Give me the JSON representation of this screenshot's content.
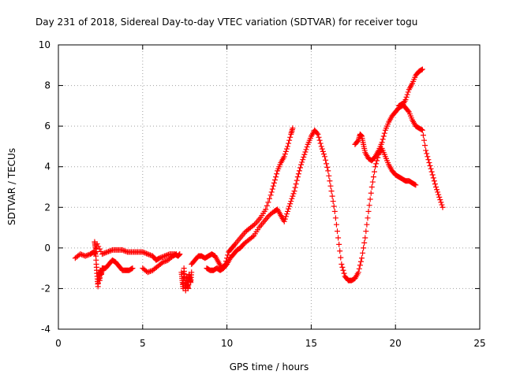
{
  "chart_data": {
    "type": "scatter",
    "title": "Day 231 of 2018, Sidereal Day-to-day VTEC variation (SDTVAR) for receiver togu",
    "xlabel": "GPS time / hours",
    "ylabel": "SDTVAR / TECUs",
    "xlim": [
      0,
      25
    ],
    "ylim": [
      -4,
      10
    ],
    "x_ticks": [
      0,
      5,
      10,
      15,
      20,
      25
    ],
    "y_ticks": [
      -4,
      -2,
      0,
      2,
      4,
      6,
      8,
      10
    ],
    "x_tick_labels": [
      "0",
      "5",
      "10",
      "15",
      "20",
      "25"
    ],
    "y_tick_labels": [
      "-4",
      "-2",
      "0",
      "2",
      "4",
      "6",
      "8",
      "10"
    ],
    "grid": true,
    "marker": "+",
    "color": "#ff0000",
    "series": [
      {
        "name": "seg-a-upper",
        "x": [
          1.0,
          1.3,
          1.6,
          1.9,
          2.1,
          2.2,
          2.3,
          2.6,
          2.9,
          3.2,
          3.5,
          3.8,
          4.1,
          4.4,
          4.7,
          5.0,
          5.3,
          5.6,
          5.8,
          6.0,
          6.3,
          6.6,
          6.9,
          7.1,
          7.2
        ],
        "y": [
          -0.5,
          -0.3,
          -0.4,
          -0.3,
          -0.2,
          -0.3,
          0.2,
          -0.3,
          -0.2,
          -0.1,
          -0.1,
          -0.1,
          -0.2,
          -0.2,
          -0.2,
          -0.2,
          -0.3,
          -0.4,
          -0.6,
          -0.5,
          -0.4,
          -0.3,
          -0.3,
          -0.4,
          -0.3
        ]
      },
      {
        "name": "seg-a-spikes",
        "x": [
          2.15,
          2.2,
          2.25,
          2.3,
          2.35,
          2.4,
          2.45,
          2.5,
          2.55,
          2.6
        ],
        "y": [
          0.3,
          0.0,
          -0.8,
          -1.4,
          -1.9,
          -1.2,
          -1.6,
          -1.1,
          -1.3,
          -1.0
        ]
      },
      {
        "name": "seg-a-lower",
        "x": [
          2.6,
          2.8,
          3.0,
          3.2,
          3.4,
          3.6,
          3.8,
          4.0,
          4.2,
          4.4
        ],
        "y": [
          -1.0,
          -1.0,
          -0.8,
          -0.6,
          -0.7,
          -0.9,
          -1.1,
          -1.1,
          -1.1,
          -1.0
        ]
      },
      {
        "name": "seg-b",
        "x": [
          5.0,
          5.3,
          5.6,
          5.9,
          6.2,
          6.5,
          6.8,
          7.0
        ],
        "y": [
          -1.0,
          -1.2,
          -1.1,
          -0.9,
          -0.7,
          -0.6,
          -0.4,
          -0.3
        ]
      },
      {
        "name": "seg-c-drop",
        "x": [
          7.3,
          7.35,
          7.4,
          7.45,
          7.5,
          7.55,
          7.6,
          7.65,
          7.7,
          7.75,
          7.8,
          7.85,
          7.9
        ],
        "y": [
          -1.2,
          -1.6,
          -2.0,
          -1.0,
          -1.6,
          -2.1,
          -1.4,
          -1.8,
          -2.0,
          -1.3,
          -1.5,
          -1.7,
          -1.2
        ]
      },
      {
        "name": "seg-c",
        "x": [
          7.9,
          8.1,
          8.3,
          8.5,
          8.7,
          8.9,
          9.1,
          9.3,
          9.5,
          9.7,
          9.9,
          10.1,
          10.3,
          10.5,
          10.8,
          11.1,
          11.4,
          11.7,
          12.0,
          12.3,
          12.6,
          12.8,
          13.0,
          13.2,
          13.4,
          13.6,
          13.8,
          13.9
        ],
        "y": [
          -0.8,
          -0.6,
          -0.4,
          -0.4,
          -0.5,
          -0.4,
          -0.3,
          -0.4,
          -0.7,
          -1.0,
          -0.8,
          -0.2,
          0.0,
          0.2,
          0.5,
          0.8,
          1.0,
          1.2,
          1.5,
          1.9,
          2.6,
          3.2,
          3.8,
          4.2,
          4.5,
          5.0,
          5.6,
          5.9
        ]
      },
      {
        "name": "seg-d",
        "x": [
          8.8,
          9.0,
          9.2,
          9.4,
          9.6,
          9.8,
          10.0,
          10.2,
          10.4,
          10.6,
          10.8,
          11.0,
          11.3,
          11.6,
          11.9,
          12.2,
          12.5,
          12.8,
          13.0,
          13.2,
          13.4,
          13.6,
          13.8,
          14.0,
          14.2,
          14.4,
          14.6,
          14.8,
          15.0,
          15.2,
          15.4,
          15.6,
          15.8,
          16.0,
          16.2,
          16.4,
          16.6,
          16.8,
          17.0,
          17.2,
          17.4,
          17.6,
          17.8,
          18.0,
          18.2,
          18.4,
          18.6,
          18.8,
          19.0,
          19.2,
          19.4,
          19.6,
          19.8,
          20.0,
          20.2,
          20.4,
          20.6,
          20.8,
          21.0,
          21.2
        ],
        "y": [
          -1.0,
          -1.1,
          -1.1,
          -1.0,
          -1.1,
          -1.0,
          -0.8,
          -0.5,
          -0.3,
          -0.1,
          0.0,
          0.2,
          0.4,
          0.6,
          1.0,
          1.3,
          1.6,
          1.8,
          1.9,
          1.6,
          1.3,
          1.8,
          2.3,
          2.8,
          3.5,
          4.1,
          4.6,
          5.1,
          5.5,
          5.8,
          5.6,
          5.0,
          4.5,
          3.8,
          2.8,
          1.8,
          0.5,
          -0.8,
          -1.4,
          -1.6,
          -1.6,
          -1.5,
          -1.2,
          -0.5,
          0.5,
          1.8,
          3.0,
          4.0,
          4.6,
          4.9,
          4.5,
          4.1,
          3.8,
          3.6,
          3.5,
          3.4,
          3.3,
          3.3,
          3.2,
          3.1
        ]
      },
      {
        "name": "seg-e",
        "x": [
          17.6,
          17.8,
          17.9,
          18.0,
          18.1,
          18.2,
          18.4,
          18.6,
          18.8,
          19.0,
          19.2,
          19.4,
          19.6,
          19.8,
          20.0,
          20.2,
          20.4,
          20.6,
          20.8,
          21.0,
          21.2,
          21.4,
          21.6
        ],
        "y": [
          5.1,
          5.3,
          5.6,
          5.5,
          5.1,
          4.7,
          4.4,
          4.3,
          4.5,
          4.8,
          5.2,
          5.8,
          6.2,
          6.5,
          6.7,
          6.9,
          7.0,
          7.3,
          7.8,
          8.1,
          8.5,
          8.7,
          8.8
        ]
      },
      {
        "name": "seg-f",
        "x": [
          20.2,
          20.4,
          20.6,
          20.8,
          21.0,
          21.2,
          21.4,
          21.6,
          21.8,
          22.0,
          22.2,
          22.4,
          22.6,
          22.8
        ],
        "y": [
          7.0,
          7.1,
          6.9,
          6.7,
          6.3,
          6.0,
          5.9,
          5.8,
          4.8,
          4.2,
          3.6,
          3.0,
          2.5,
          2.0
        ]
      }
    ]
  }
}
